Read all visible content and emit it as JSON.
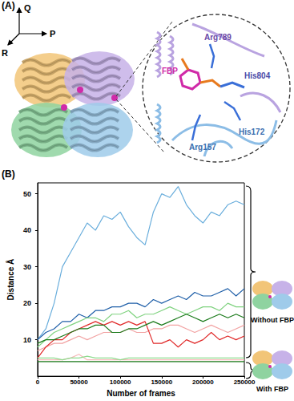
{
  "panels": [
    "(A)",
    "(B)"
  ],
  "panel_a": {
    "axes": {
      "up": "Q",
      "right": "P",
      "diagonal": "R"
    },
    "ligand": "FBP",
    "residues": [
      "Arg789",
      "His804",
      "Arg157",
      "His172"
    ]
  },
  "chart_data": {
    "type": "line",
    "x_label": "Number of frames",
    "y_label": "Distance Å",
    "x": [
      0,
      10000,
      20000,
      30000,
      40000,
      50000,
      60000,
      70000,
      80000,
      90000,
      100000,
      110000,
      120000,
      130000,
      140000,
      150000,
      160000,
      170000,
      180000,
      190000,
      200000,
      210000,
      220000,
      230000,
      240000,
      250000
    ],
    "series": [
      {
        "color": "#6aaedc",
        "values": [
          10,
          13,
          20,
          30,
          34,
          38,
          42,
          40,
          44,
          43,
          45,
          41,
          38,
          36,
          45,
          50,
          49,
          52,
          47,
          44,
          42,
          45,
          44,
          47,
          48,
          47
        ]
      },
      {
        "color": "#f2a3a3",
        "values": [
          7,
          8,
          9,
          9,
          10,
          11,
          10,
          11,
          12,
          12,
          12,
          13,
          12,
          12,
          13,
          13,
          14,
          14,
          13,
          12,
          13,
          14,
          13,
          12,
          13,
          14
        ]
      },
      {
        "color": "#e02828",
        "values": [
          5,
          8,
          10,
          10,
          12,
          13,
          14,
          15,
          14,
          15,
          14,
          15,
          14,
          15,
          9,
          9,
          10,
          8,
          10,
          9,
          10,
          12,
          10,
          11,
          10,
          11
        ]
      },
      {
        "color": "#1f5fa8",
        "values": [
          10,
          12,
          13,
          15,
          15,
          17,
          16,
          18,
          18,
          19,
          19,
          20,
          20,
          19,
          21,
          20,
          21,
          22,
          21,
          23,
          22,
          22,
          23,
          24,
          22,
          24
        ]
      },
      {
        "color": "#7fd27f",
        "values": [
          8,
          10,
          12,
          13,
          14,
          15,
          16,
          16,
          15,
          17,
          17,
          18,
          16,
          17,
          17,
          18,
          19,
          18,
          17,
          18,
          19,
          19,
          18,
          20,
          19,
          19
        ]
      },
      {
        "color": "#1a7a1a",
        "values": [
          9,
          10,
          10,
          11,
          12,
          13,
          13,
          14,
          14,
          12,
          12,
          13,
          13,
          14,
          15,
          14,
          15,
          16,
          17,
          16,
          15,
          16,
          17,
          16,
          17,
          16
        ]
      },
      {
        "color": "#f6b9b9",
        "values": [
          4.5,
          4.5,
          4.5,
          4.5,
          5,
          6,
          4.5,
          4.5,
          4.5,
          4.5,
          4.5,
          4.5,
          4.5,
          4.5,
          4.5,
          4.5,
          4.5,
          4.5,
          4.5,
          4.5,
          4.5,
          4.5,
          4.5,
          4.5,
          4.5,
          4.5
        ]
      },
      {
        "color": "#8fdc8f",
        "values": [
          5,
          5,
          5,
          4.5,
          5,
          5,
          5.5,
          5,
          5,
          5,
          4.5,
          5,
          5,
          5,
          5,
          5,
          5,
          5,
          5,
          5,
          5,
          5,
          5,
          5,
          5,
          5
        ]
      },
      {
        "color": "#1a7a1a",
        "values": [
          4,
          4,
          4,
          4,
          4,
          4,
          4,
          4,
          4,
          4,
          4,
          4,
          4,
          4,
          4,
          4,
          4,
          4,
          4,
          4,
          4,
          4,
          4,
          4,
          4,
          4
        ]
      }
    ],
    "xlim": [
      0,
      250000
    ],
    "xticks": [
      0,
      50000,
      100000,
      150000,
      200000,
      250000
    ],
    "ylim": [
      0,
      53
    ],
    "yticks": [
      10,
      20,
      30,
      40,
      50
    ],
    "grid": false,
    "annotations": [
      "Without FBP",
      "With FBP"
    ]
  }
}
